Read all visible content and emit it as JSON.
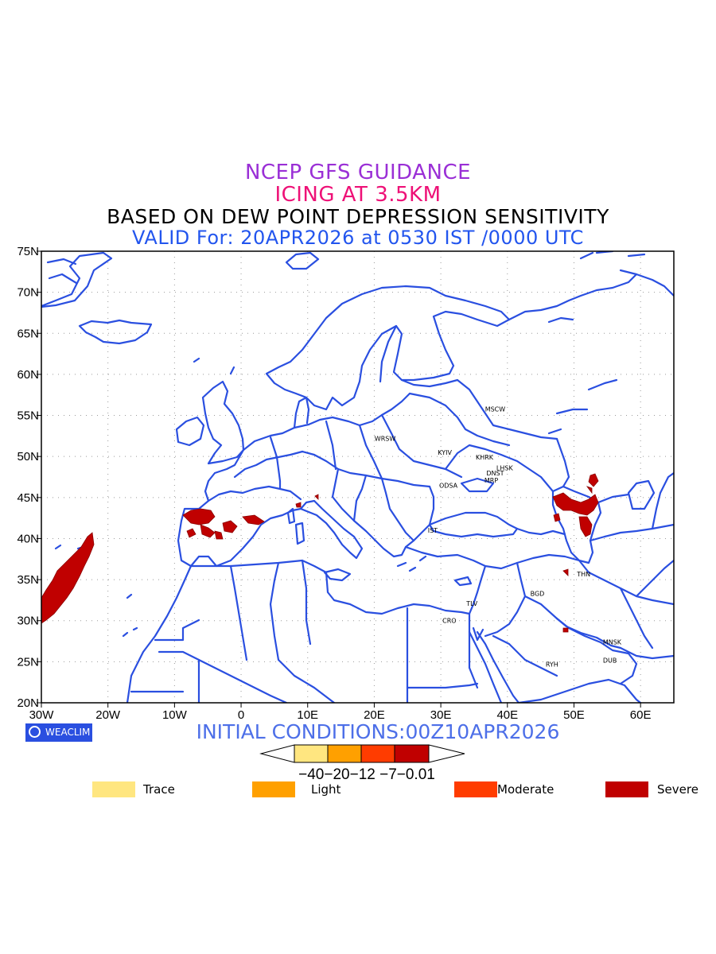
{
  "titles": {
    "line1": "NCEP GFS GUIDANCE",
    "line2": "ICING AT 3.5KM",
    "line3": "BASED ON DEW POINT DEPRESSION SENSITIVITY",
    "line4": "VALID For: 20APR2026 at 0530 IST /0000 UTC"
  },
  "map": {
    "lon_range": [
      -30,
      65
    ],
    "lat_range": [
      20,
      75
    ],
    "lon_ticks": [
      "30W",
      "20W",
      "10W",
      "0",
      "10E",
      "20E",
      "30E",
      "40E",
      "50E",
      "60E"
    ],
    "lat_ticks": [
      "75N",
      "70N",
      "65N",
      "60N",
      "55N",
      "50N",
      "45N",
      "40N",
      "35N",
      "30N",
      "25N",
      "20N"
    ],
    "grid": "dotted",
    "boundary_color": "#2a4fe0",
    "icing_color": "#c00000"
  },
  "cities": [
    {
      "label": "MSCW",
      "lon": 37.6,
      "lat": 55.8
    },
    {
      "label": "WRSW",
      "lon": 21.0,
      "lat": 52.2
    },
    {
      "label": "KYIV",
      "lon": 30.5,
      "lat": 50.5
    },
    {
      "label": "KHRK",
      "lon": 36.2,
      "lat": 49.9
    },
    {
      "label": "LHSK",
      "lon": 39.3,
      "lat": 48.6
    },
    {
      "label": "DNST",
      "lon": 37.8,
      "lat": 48.0
    },
    {
      "label": "MRP",
      "lon": 37.5,
      "lat": 47.1
    },
    {
      "label": "ODSA",
      "lon": 30.7,
      "lat": 46.5
    },
    {
      "label": "IST",
      "lon": 29.0,
      "lat": 41.0
    },
    {
      "label": "THN",
      "lon": 51.4,
      "lat": 35.7
    },
    {
      "label": "BGD",
      "lon": 44.4,
      "lat": 33.3
    },
    {
      "label": "TLV",
      "lon": 34.8,
      "lat": 32.1
    },
    {
      "label": "CRO",
      "lon": 31.2,
      "lat": 30.0
    },
    {
      "label": "MNSK",
      "lon": 55.3,
      "lat": 27.4
    },
    {
      "label": "DUB",
      "lon": 55.3,
      "lat": 25.2
    },
    {
      "label": "RYH",
      "lon": 46.7,
      "lat": 24.7
    }
  ],
  "badge": {
    "text": "WEACLIM"
  },
  "initial_conditions": "INITIAL CONDITIONS:00Z10APR2026",
  "colorbar": {
    "labels": [
      "-40",
      "-20",
      "-12",
      "-7",
      "-0.01"
    ],
    "label_text": "−40−20−12 −7−0.01",
    "colors": [
      "#ffe680",
      "#ffa000",
      "#ff3c00",
      "#c00000"
    ]
  },
  "legend": [
    {
      "label": "Trace",
      "color": "#ffe680"
    },
    {
      "label": "Light",
      "color": "#ffa000"
    },
    {
      "label": "Moderate",
      "color": "#ff3c00"
    },
    {
      "label": "Severe",
      "color": "#c00000"
    }
  ]
}
